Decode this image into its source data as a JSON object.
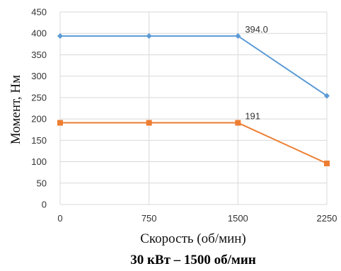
{
  "chart_data": {
    "type": "line",
    "title": "30 кВт – 1500 об/мин",
    "xlabel": "Скорость (об/мин)",
    "ylabel": "Момент, Нм",
    "x": [
      0,
      750,
      1500,
      2250
    ],
    "x_tick_labels": [
      "0",
      "750",
      "1500",
      "2250"
    ],
    "ylim": [
      0,
      450
    ],
    "y_ticks": [
      0,
      50,
      100,
      150,
      200,
      250,
      300,
      350,
      400,
      450
    ],
    "grid": true,
    "legend": "none",
    "series": [
      {
        "values": [
          394,
          394,
          394,
          254
        ],
        "color": "#5b9bd5",
        "marker": "diamond"
      },
      {
        "values": [
          191,
          191,
          191,
          96
        ],
        "color": "#ed7d31",
        "marker": "square"
      }
    ],
    "annotations": [
      {
        "text": "394.0",
        "x": 1500,
        "y": 394,
        "series": 0
      },
      {
        "text": "191",
        "x": 1500,
        "y": 191,
        "series": 1
      }
    ]
  }
}
